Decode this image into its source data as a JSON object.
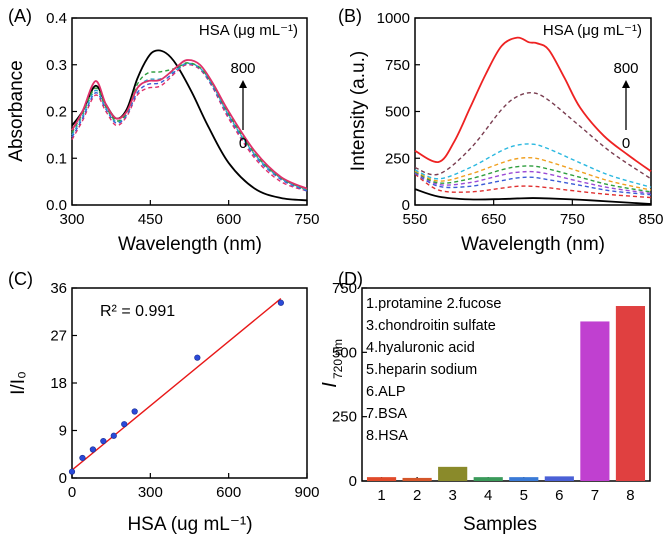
{
  "chart_data": [
    {
      "panel": "(A)",
      "type": "line",
      "xlabel": "Wavelength (nm)",
      "ylabel": "Absorbance",
      "xlim": [
        300,
        750
      ],
      "ylim": [
        0,
        0.4
      ],
      "xticks": [
        "300",
        "450",
        "600",
        "750"
      ],
      "yticks": [
        "0.0",
        "0.1",
        "0.2",
        "0.3",
        "0.4"
      ],
      "legend_title": "HSA (μg mL⁻¹)",
      "arrow_top": "800",
      "arrow_bottom": "0",
      "series": [
        {
          "color": "#000000",
          "dash": "solid",
          "x": [
            300,
            320,
            345,
            365,
            385,
            405,
            425,
            445,
            460,
            480,
            500,
            530,
            560,
            600,
            650,
            700,
            750
          ],
          "y": [
            0.17,
            0.2,
            0.255,
            0.215,
            0.185,
            0.205,
            0.27,
            0.315,
            0.33,
            0.325,
            0.3,
            0.24,
            0.17,
            0.09,
            0.035,
            0.015,
            0.01
          ]
        },
        {
          "color": "#e0306a",
          "dash": "dash",
          "x": [
            300,
            320,
            345,
            365,
            385,
            405,
            425,
            445,
            470,
            500,
            520,
            545,
            570,
            600,
            650,
            700,
            750
          ],
          "y": [
            0.14,
            0.18,
            0.235,
            0.2,
            0.17,
            0.19,
            0.235,
            0.25,
            0.255,
            0.285,
            0.3,
            0.29,
            0.25,
            0.185,
            0.1,
            0.05,
            0.03
          ]
        },
        {
          "color": "#3b5bd6",
          "dash": "dash",
          "x": [
            300,
            320,
            345,
            365,
            385,
            405,
            425,
            445,
            470,
            500,
            520,
            545,
            570,
            600,
            650,
            700,
            750
          ],
          "y": [
            0.145,
            0.185,
            0.24,
            0.205,
            0.175,
            0.193,
            0.24,
            0.258,
            0.262,
            0.288,
            0.302,
            0.292,
            0.252,
            0.19,
            0.105,
            0.055,
            0.03
          ]
        },
        {
          "color": "#2aa8c9",
          "dash": "dash",
          "x": [
            300,
            320,
            345,
            365,
            385,
            405,
            425,
            445,
            470,
            500,
            520,
            545,
            570,
            600,
            650,
            700,
            750
          ],
          "y": [
            0.15,
            0.19,
            0.245,
            0.208,
            0.178,
            0.196,
            0.248,
            0.268,
            0.27,
            0.29,
            0.303,
            0.293,
            0.255,
            0.192,
            0.108,
            0.057,
            0.032
          ]
        },
        {
          "color": "#2e9e3e",
          "dash": "dash",
          "x": [
            300,
            320,
            345,
            365,
            385,
            405,
            425,
            445,
            470,
            500,
            520,
            545,
            570,
            600,
            650,
            700,
            750
          ],
          "y": [
            0.155,
            0.195,
            0.25,
            0.21,
            0.18,
            0.198,
            0.258,
            0.282,
            0.285,
            0.293,
            0.304,
            0.294,
            0.257,
            0.195,
            0.11,
            0.058,
            0.033
          ]
        },
        {
          "color": "#e0306a",
          "dash": "solid",
          "x": [
            300,
            320,
            345,
            365,
            385,
            405,
            425,
            445,
            470,
            500,
            520,
            545,
            570,
            600,
            650,
            700,
            750
          ],
          "y": [
            0.16,
            0.2,
            0.265,
            0.215,
            0.185,
            0.2,
            0.25,
            0.265,
            0.268,
            0.295,
            0.31,
            0.3,
            0.26,
            0.2,
            0.115,
            0.06,
            0.035
          ]
        }
      ]
    },
    {
      "panel": "(B)",
      "type": "line",
      "xlabel": "Wavelength (nm)",
      "ylabel": "Intensity (a.u.)",
      "xlim": [
        550,
        850
      ],
      "ylim": [
        0,
        1000
      ],
      "xticks": [
        "550",
        "650",
        "750",
        "850"
      ],
      "yticks": [
        "0",
        "250",
        "500",
        "750",
        "1000"
      ],
      "legend_title": "HSA (μg mL⁻¹)",
      "arrow_top": "800",
      "arrow_bottom": "0",
      "series": [
        {
          "color": "#000000",
          "dash": "solid",
          "x": [
            550,
            580,
            620,
            660,
            680,
            700,
            720,
            760,
            800,
            850
          ],
          "y": [
            85,
            45,
            30,
            32,
            35,
            37,
            35,
            28,
            18,
            5
          ]
        },
        {
          "color": "#e03030",
          "dash": "dash",
          "x": [
            550,
            580,
            620,
            660,
            680,
            700,
            720,
            760,
            800,
            850
          ],
          "y": [
            165,
            80,
            70,
            90,
            100,
            100,
            92,
            72,
            55,
            40
          ]
        },
        {
          "color": "#3b5bd6",
          "dash": "dash",
          "x": [
            550,
            580,
            620,
            660,
            680,
            700,
            720,
            760,
            800,
            850
          ],
          "y": [
            170,
            100,
            100,
            130,
            145,
            148,
            135,
            105,
            75,
            55
          ]
        },
        {
          "color": "#9b4bd6",
          "dash": "dash",
          "x": [
            550,
            580,
            620,
            660,
            680,
            700,
            720,
            760,
            800,
            850
          ],
          "y": [
            175,
            110,
            120,
            160,
            175,
            178,
            165,
            125,
            90,
            62
          ]
        },
        {
          "color": "#2e9e3e",
          "dash": "dash",
          "x": [
            550,
            580,
            620,
            660,
            680,
            700,
            720,
            760,
            800,
            850
          ],
          "y": [
            178,
            118,
            140,
            188,
            205,
            208,
            192,
            148,
            105,
            70
          ]
        },
        {
          "color": "#f0a020",
          "dash": "dash",
          "x": [
            550,
            580,
            620,
            660,
            680,
            700,
            720,
            760,
            800,
            850
          ],
          "y": [
            182,
            128,
            165,
            225,
            248,
            252,
            232,
            178,
            125,
            80
          ]
        },
        {
          "color": "#2ab8e0",
          "dash": "dash",
          "x": [
            550,
            580,
            620,
            660,
            680,
            700,
            720,
            760,
            800,
            850
          ],
          "y": [
            188,
            140,
            200,
            290,
            320,
            325,
            300,
            225,
            155,
            95
          ]
        },
        {
          "color": "#7a3d50",
          "dash": "dash",
          "x": [
            550,
            580,
            620,
            660,
            680,
            700,
            720,
            760,
            800,
            850
          ],
          "y": [
            200,
            165,
            300,
            510,
            580,
            600,
            560,
            420,
            280,
            140
          ]
        },
        {
          "color": "#ee2222",
          "dash": "solid",
          "x": [
            550,
            580,
            600,
            620,
            640,
            660,
            680,
            695,
            705,
            720,
            740,
            760,
            790,
            820,
            850
          ],
          "y": [
            290,
            230,
            340,
            520,
            700,
            850,
            895,
            870,
            865,
            830,
            680,
            520,
            370,
            270,
            180
          ]
        }
      ]
    },
    {
      "panel": "(C)",
      "type": "scatter",
      "xlabel": "HSA (ug mL⁻¹)",
      "ylabel": "I/I₀",
      "xlim": [
        0,
        900
      ],
      "ylim": [
        0,
        36
      ],
      "xticks": [
        "0",
        "300",
        "600",
        "900"
      ],
      "yticks": [
        "0",
        "9",
        "18",
        "27",
        "36"
      ],
      "annotation": "R² = 0.991",
      "fit_line": {
        "x": [
          0,
          800
        ],
        "y": [
          1.5,
          34
        ]
      },
      "x": [
        0,
        40,
        80,
        120,
        160,
        200,
        240,
        480,
        800
      ],
      "y": [
        1.2,
        3.8,
        5.4,
        7.0,
        8.0,
        10.2,
        12.6,
        22.8,
        33.2
      ]
    },
    {
      "panel": "(D)",
      "type": "bar",
      "xlabel": "Samples",
      "ylabel_main": "I",
      "ylabel_sub": "720 nm",
      "ylim": [
        0,
        750
      ],
      "yticks": [
        "0",
        "250",
        "500",
        "750"
      ],
      "categories": [
        "1",
        "2",
        "3",
        "4",
        "5",
        "6",
        "7",
        "8"
      ],
      "values": [
        15,
        12,
        55,
        15,
        15,
        18,
        620,
        680
      ],
      "colors": [
        "#e04a2a",
        "#d4562a",
        "#8a8a2a",
        "#3a9a5a",
        "#3a7ad6",
        "#4a60d6",
        "#c040d0",
        "#e04040"
      ],
      "legend_lines": [
        "1.protamine 2.fucose",
        "3.chondroitin sulfate",
        "4.hyaluronic acid",
        "5.heparin sodium",
        "6.ALP",
        "7.BSA",
        "8.HSA"
      ]
    }
  ]
}
